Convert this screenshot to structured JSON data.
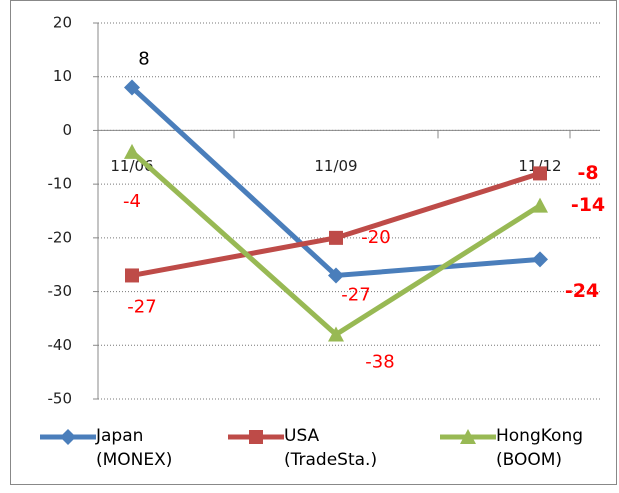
{
  "chart_data": {
    "type": "line",
    "categories": [
      "11/06",
      "11/09",
      "11/12"
    ],
    "series": [
      {
        "name": "Japan\n(MONEX)",
        "color": "#4a7ebb",
        "marker": "diamond",
        "values": [
          8,
          -27,
          -24
        ],
        "value_label_colors": [
          "#000000",
          "#ff0000",
          "#ff0000"
        ]
      },
      {
        "name": "USA\n(TradeSta.)",
        "color": "#be4b48",
        "marker": "square",
        "values": [
          -27,
          -20,
          -8
        ],
        "value_label_colors": [
          "#ff0000",
          "#ff0000",
          "#ff0000"
        ]
      },
      {
        "name": "HongKong\n(BOOM)",
        "color": "#98b954",
        "marker": "triangle",
        "values": [
          -4,
          -38,
          -14
        ],
        "value_label_colors": [
          "#ff0000",
          "#ff0000",
          "#ff0000"
        ]
      }
    ],
    "ylim": [
      -50,
      20
    ],
    "yticks": [
      -50,
      -40,
      -30,
      -20,
      -10,
      0,
      10,
      20
    ],
    "grid": true,
    "legend": "bottom"
  }
}
